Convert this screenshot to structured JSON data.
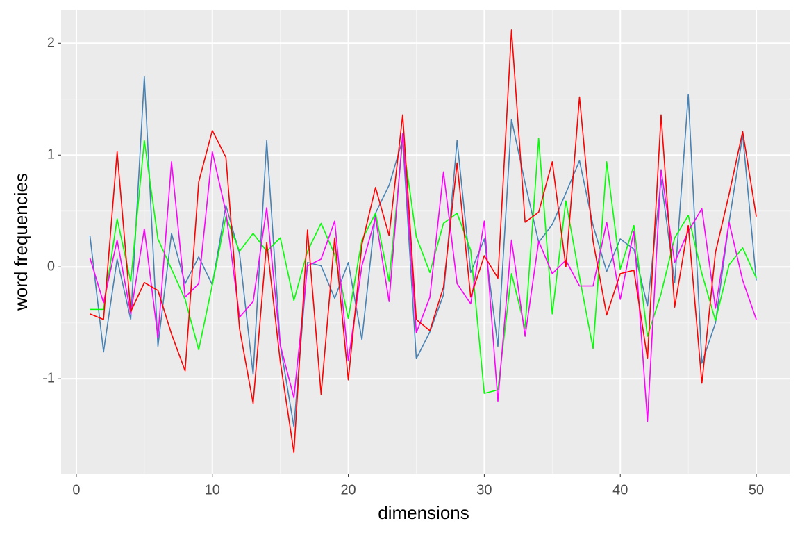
{
  "chart_data": {
    "type": "line",
    "x_label": "dimensions",
    "y_label": "word frequencies",
    "x": [
      1,
      2,
      3,
      4,
      5,
      6,
      7,
      8,
      9,
      10,
      11,
      12,
      13,
      14,
      15,
      16,
      17,
      18,
      19,
      20,
      21,
      22,
      23,
      24,
      25,
      26,
      27,
      28,
      29,
      30,
      31,
      32,
      33,
      34,
      35,
      36,
      37,
      38,
      39,
      40,
      41,
      42,
      43,
      44,
      45,
      46,
      47,
      48,
      49,
      50
    ],
    "series": [
      {
        "color": "#4682b4",
        "values": [
          0.28,
          -0.76,
          0.07,
          -0.47,
          1.7,
          -0.71,
          0.3,
          -0.15,
          0.09,
          -0.16,
          0.55,
          0.12,
          -0.96,
          1.13,
          -0.7,
          -1.43,
          0.04,
          0.01,
          -0.28,
          0.04,
          -0.65,
          0.48,
          0.73,
          1.14,
          -0.82,
          -0.58,
          -0.25,
          1.13,
          -0.05,
          0.25,
          -0.71,
          1.32,
          0.75,
          0.22,
          0.38,
          0.66,
          0.95,
          0.37,
          -0.04,
          0.25,
          0.16,
          -0.35,
          0.78,
          -0.14,
          1.54,
          -0.86,
          -0.5,
          0.4,
          1.18,
          -0.12
        ]
      },
      {
        "color": "#00ff00",
        "values": [
          -0.38,
          -0.38,
          0.43,
          -0.13,
          1.13,
          0.25,
          -0.02,
          -0.29,
          -0.74,
          -0.16,
          0.45,
          0.14,
          0.3,
          0.14,
          0.26,
          -0.3,
          0.14,
          0.39,
          0.11,
          -0.46,
          0.24,
          0.48,
          -0.13,
          1.13,
          0.27,
          -0.05,
          0.39,
          0.48,
          0.15,
          -1.13,
          -1.1,
          -0.06,
          -0.55,
          1.15,
          -0.42,
          0.59,
          -0.09,
          -0.73,
          0.94,
          -0.02,
          0.37,
          -0.62,
          -0.24,
          0.26,
          0.46,
          -0.06,
          -0.48,
          0.02,
          0.17,
          -0.1
        ]
      },
      {
        "color": "#ff00ff",
        "values": [
          0.08,
          -0.32,
          0.24,
          -0.42,
          0.34,
          -0.63,
          0.94,
          -0.27,
          -0.15,
          1.03,
          0.49,
          -0.45,
          -0.31,
          0.53,
          -0.7,
          -1.17,
          0.01,
          0.07,
          0.41,
          -0.84,
          0.01,
          0.44,
          -0.31,
          1.19,
          -0.59,
          -0.27,
          0.85,
          -0.15,
          -0.33,
          0.41,
          -1.2,
          0.24,
          -0.62,
          0.23,
          -0.06,
          0.06,
          -0.17,
          -0.17,
          0.4,
          -0.29,
          0.32,
          -1.38,
          0.87,
          0.04,
          0.32,
          0.52,
          -0.37,
          0.4,
          -0.12,
          -0.47
        ]
      },
      {
        "color": "#ff0000",
        "values": [
          -0.42,
          -0.47,
          1.03,
          -0.4,
          -0.14,
          -0.21,
          -0.6,
          -0.93,
          0.76,
          1.22,
          0.98,
          -0.55,
          -1.22,
          0.22,
          -0.85,
          -1.66,
          0.33,
          -1.14,
          0.26,
          -1.01,
          0.2,
          0.71,
          0.28,
          1.36,
          -0.47,
          -0.57,
          -0.18,
          0.93,
          -0.27,
          0.1,
          -0.1,
          2.12,
          0.4,
          0.49,
          0.94,
          0.0,
          1.52,
          0.23,
          -0.43,
          -0.06,
          -0.03,
          -0.82,
          1.36,
          -0.36,
          0.37,
          -1.04,
          0.13,
          0.65,
          1.21,
          0.45
        ]
      }
    ],
    "xlim": [
      -1.12,
      52.5
    ],
    "ylim": [
      -1.85,
      2.3
    ],
    "xticks": [
      0,
      10,
      20,
      30,
      40,
      50
    ],
    "yticks": [
      -1,
      0,
      1,
      2
    ],
    "grid": true
  }
}
